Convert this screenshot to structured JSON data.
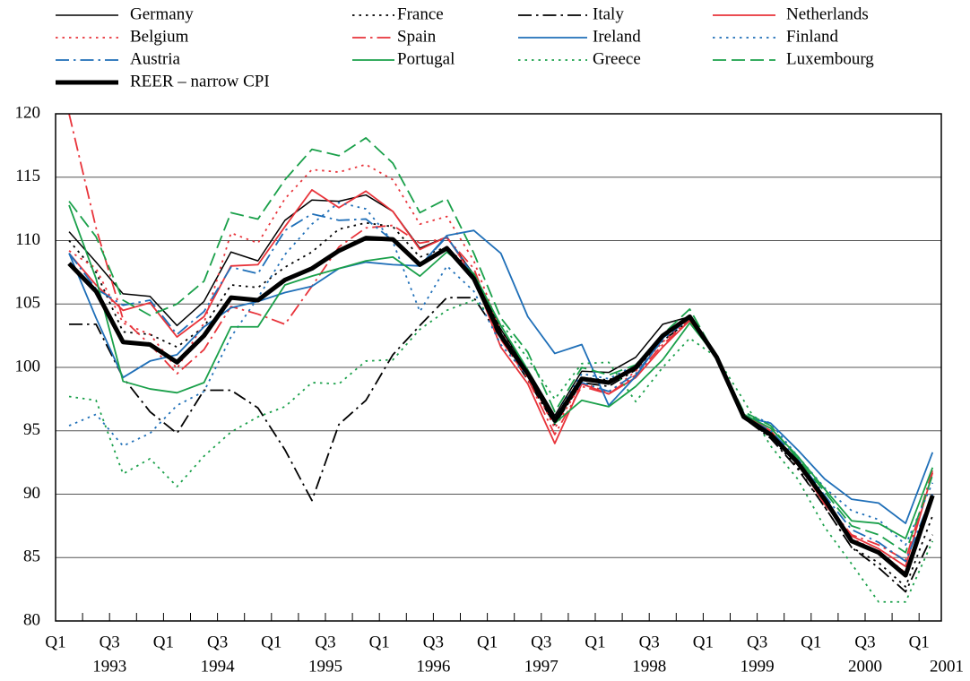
{
  "chart_data": {
    "type": "line",
    "quarter_labels": [
      "Q1",
      "Q3",
      "Q1",
      "Q3",
      "Q1",
      "Q3",
      "Q1",
      "Q3",
      "Q1",
      "Q3",
      "Q1",
      "Q3",
      "Q1",
      "Q3",
      "Q1",
      "Q3",
      "Q1"
    ],
    "year_labels": [
      "1993",
      "1994",
      "1995",
      "1996",
      "1997",
      "1998",
      "1999",
      "2000",
      "2001"
    ],
    "ylim": [
      80,
      120
    ],
    "yticks": [
      80,
      85,
      90,
      95,
      100,
      105,
      110,
      115,
      120
    ],
    "grid": true,
    "series": [
      {
        "name": "Germany",
        "color": "#000000",
        "dash": "solid",
        "width": 1.5,
        "values": [
          110.7,
          108.3,
          105.8,
          105.6,
          103.3,
          105.2,
          109.1,
          108.4,
          111.6,
          113.2,
          113.1,
          113.6,
          112.3,
          109.4,
          110.3,
          107.3,
          103,
          99.8,
          96.2,
          99.7,
          99.6,
          100.8,
          103.4,
          104,
          100.8,
          96,
          94.6,
          92.3,
          89.5,
          86.2,
          85.4,
          83.8,
          90
        ]
      },
      {
        "name": "France",
        "color": "#000000",
        "dash": "dot",
        "width": 1.8,
        "values": [
          110,
          107.5,
          102.8,
          102.6,
          101.6,
          103.2,
          106.5,
          106.3,
          107.9,
          109.1,
          110.9,
          111.4,
          111.1,
          108.7,
          109.5,
          107.4,
          103,
          99.7,
          96,
          99.2,
          99,
          100,
          102.3,
          103.8,
          100.8,
          96,
          94.5,
          92.1,
          89,
          85.8,
          84.6,
          82.7,
          88.3
        ]
      },
      {
        "name": "Italy",
        "color": "#000000",
        "dash": "dashdot",
        "width": 1.8,
        "values": [
          103.4,
          103.4,
          99.2,
          96.5,
          94.8,
          98.2,
          98.2,
          96.8,
          93.5,
          89.5,
          95.5,
          97.4,
          101,
          103.3,
          105.5,
          105.5,
          102.3,
          99,
          95.5,
          98.8,
          98.5,
          99.8,
          102.1,
          103.7,
          100.8,
          96,
          94.4,
          92,
          89,
          85.8,
          84.2,
          82.3,
          86.8
        ]
      },
      {
        "name": "Netherlands",
        "color": "#e8333a",
        "dash": "solid",
        "width": 1.8,
        "values": [
          109,
          106.5,
          104.5,
          105.1,
          102.4,
          104,
          108,
          108.1,
          111.1,
          114,
          112.6,
          113.9,
          112.3,
          109.3,
          110.3,
          107.1,
          101.6,
          98.7,
          94,
          98.7,
          97.9,
          99.2,
          101.6,
          103.7,
          100.8,
          96.3,
          95,
          92.5,
          89.2,
          86.7,
          85.7,
          84.3,
          91.7
        ]
      },
      {
        "name": "Belgium",
        "color": "#e8333a",
        "dash": "dot",
        "width": 1.8,
        "values": [
          109.2,
          107.8,
          103.5,
          102.6,
          99.9,
          103.5,
          110.6,
          109.8,
          113.3,
          115.6,
          115.4,
          116,
          114.8,
          111.3,
          111.9,
          108.4,
          102.8,
          99.5,
          95.2,
          98.8,
          98,
          99.7,
          102,
          103.8,
          100.8,
          96.2,
          94.7,
          92.3,
          89.6,
          86.5,
          85.5,
          83.8,
          90
        ]
      },
      {
        "name": "Spain",
        "color": "#e8333a",
        "dash": "dashdot",
        "width": 1.8,
        "values": [
          120,
          111,
          103.8,
          101.8,
          99.5,
          101.4,
          104.8,
          104.2,
          103.4,
          106.4,
          109.5,
          111,
          111.2,
          109.8,
          110.2,
          107.8,
          102.2,
          99.1,
          94.7,
          98.5,
          97.9,
          99.4,
          101.8,
          103.7,
          100.8,
          96.2,
          94.8,
          92.5,
          89.4,
          86.8,
          86,
          84.8,
          91.9
        ]
      },
      {
        "name": "Ireland",
        "color": "#1f6fb8",
        "dash": "solid",
        "width": 1.8,
        "values": [
          109,
          103.9,
          99.2,
          100.5,
          101,
          103.2,
          104.7,
          105.2,
          105.9,
          106.4,
          107.8,
          108.3,
          108.1,
          108,
          110.4,
          110.8,
          109,
          104,
          101.1,
          101.8,
          97,
          99.3,
          102.3,
          104,
          100.8,
          96.1,
          95.6,
          93.5,
          91.2,
          89.6,
          89.3,
          87.7,
          93.3
        ]
      },
      {
        "name": "Finland",
        "color": "#1f6fb8",
        "dash": "dot",
        "width": 1.8,
        "values": [
          95.4,
          96.3,
          93.8,
          94.8,
          97,
          98.1,
          102.4,
          105.5,
          108.9,
          111.3,
          113,
          112.5,
          109.9,
          104.4,
          108,
          106,
          101.8,
          99.3,
          96,
          99.5,
          99.1,
          100.2,
          102.5,
          104,
          100.8,
          96.4,
          95.6,
          93,
          90.5,
          88.7,
          88,
          86,
          90.9
        ]
      },
      {
        "name": "Austria",
        "color": "#1f6fb8",
        "dash": "dashdot",
        "width": 1.8,
        "values": [
          109,
          106.2,
          104.9,
          105.3,
          102.6,
          104.4,
          107.9,
          107.4,
          110.8,
          112.1,
          111.6,
          111.7,
          110,
          108,
          110.3,
          107.2,
          102.7,
          99.4,
          95.8,
          98.8,
          98.1,
          99.5,
          102.2,
          103.9,
          100.8,
          96.1,
          95,
          92.8,
          89.9,
          87.2,
          86.2,
          84.7,
          90
        ]
      },
      {
        "name": "Portugal",
        "color": "#1aa04a",
        "dash": "solid",
        "width": 1.8,
        "values": [
          112.8,
          107,
          98.9,
          98.3,
          98,
          98.8,
          103.2,
          103.2,
          106.5,
          107.2,
          107.8,
          108.4,
          108.7,
          107.2,
          109.1,
          107.4,
          103.3,
          99.8,
          95.6,
          97.4,
          96.9,
          98.5,
          100.6,
          103.5,
          100.8,
          96.3,
          95.2,
          93,
          90.4,
          87.9,
          87.7,
          86.5,
          92.1
        ]
      },
      {
        "name": "Greece",
        "color": "#1aa04a",
        "dash": "dot",
        "width": 1.8,
        "values": [
          97.7,
          97.4,
          91.6,
          92.8,
          90.6,
          93,
          94.9,
          96.1,
          96.9,
          98.8,
          98.7,
          100.5,
          100.6,
          103,
          104.5,
          105.3,
          103.5,
          100.7,
          97.5,
          100.3,
          100.4,
          97.3,
          100,
          102.3,
          100.8,
          97.4,
          93.8,
          91.2,
          87.4,
          84.5,
          81.5,
          81.5,
          86.3
        ]
      },
      {
        "name": "Luxembourg",
        "color": "#1aa04a",
        "dash": "dash",
        "width": 1.8,
        "values": [
          113.1,
          110.3,
          105.3,
          104.1,
          105,
          106.8,
          112.2,
          111.7,
          114.8,
          117.2,
          116.7,
          118.1,
          116.1,
          112.2,
          113.3,
          109,
          103.9,
          101.2,
          96.5,
          100,
          99.4,
          100.2,
          102.6,
          104.6,
          100.8,
          96.5,
          95.4,
          92.8,
          90.2,
          87.5,
          86.8,
          85.4,
          91.5
        ]
      },
      {
        "name": "REER – narrow CPI",
        "color": "#000000",
        "dash": "solid",
        "width": 5,
        "values": [
          108.2,
          106,
          102,
          101.8,
          100.4,
          102.5,
          105.5,
          105.3,
          106.9,
          107.8,
          109.2,
          110.2,
          110.1,
          108.1,
          109.4,
          107,
          102.5,
          99.5,
          95.8,
          99.1,
          98.8,
          100,
          102.5,
          104,
          100.8,
          96.1,
          94.7,
          92.5,
          89.6,
          86.3,
          85.4,
          83.6,
          89.9
        ]
      }
    ]
  }
}
